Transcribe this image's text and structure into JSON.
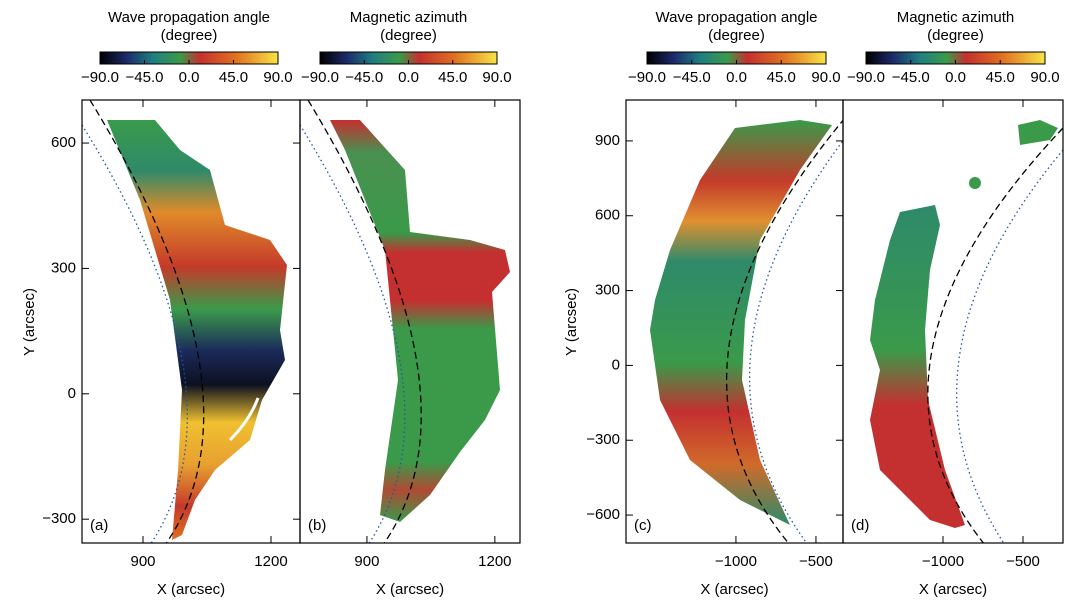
{
  "chart_data": [
    {
      "type": "image",
      "panel_label": "(a)",
      "colorbar": {
        "title": [
          "Wave propagation angle",
          "(degree)"
        ],
        "lim": [
          -90,
          90
        ],
        "ticks": [
          {
            "value": -90,
            "label": "−90.0"
          },
          {
            "value": -45,
            "label": "−45.0"
          },
          {
            "value": 0,
            "label": "0.0"
          },
          {
            "value": 45,
            "label": "45.0"
          },
          {
            "value": 90,
            "label": "90.0"
          }
        ]
      },
      "xlabel": "X (arcsec)",
      "ylabel": "Y (arcsec)",
      "xlim": [
        757,
        1268
      ],
      "ylim": [
        -357,
        703
      ],
      "xticks": [
        900,
        1200
      ],
      "yticks": [
        {
          "value": -300,
          "label": "−300"
        },
        0,
        300,
        600
      ]
    },
    {
      "type": "image",
      "panel_label": "(b)",
      "colorbar": {
        "title": [
          "Magnetic azimuth",
          "(degree)"
        ],
        "lim": [
          -90,
          90
        ],
        "ticks": [
          {
            "value": -90,
            "label": "−90.0"
          },
          {
            "value": -45,
            "label": "−45.0"
          },
          {
            "value": 0,
            "label": "0.0"
          },
          {
            "value": 45,
            "label": "45.0"
          },
          {
            "value": 90,
            "label": "90.0"
          }
        ]
      },
      "xlabel": "X (arcsec)",
      "xlim": [
        743,
        1259
      ],
      "ylim": [
        -357,
        703
      ],
      "xticks": [
        900,
        1200
      ]
    },
    {
      "type": "image",
      "panel_label": "(c)",
      "colorbar": {
        "title": [
          "Wave propagation angle",
          "(degree)"
        ],
        "lim": [
          -90,
          90
        ],
        "ticks": [
          {
            "value": -90,
            "label": "−90.0"
          },
          {
            "value": -45,
            "label": "−45.0"
          },
          {
            "value": 0,
            "label": "0.0"
          },
          {
            "value": 45,
            "label": "45.0"
          },
          {
            "value": 90,
            "label": "90.0"
          }
        ]
      },
      "xlabel": "X (arcsec)",
      "ylabel": "Y (arcsec)",
      "xlim": [
        -1687,
        -331
      ],
      "ylim": [
        -712,
        1064
      ],
      "xticks": [
        {
          "value": -1000,
          "label": "−1000"
        },
        {
          "value": -500,
          "label": "−500"
        }
      ],
      "yticks": [
        {
          "value": -600,
          "label": "−600"
        },
        {
          "value": -300,
          "label": "−300"
        },
        0,
        300,
        600,
        900
      ]
    },
    {
      "type": "image",
      "panel_label": "(d)",
      "colorbar": {
        "title": [
          "Magnetic azimuth",
          "(degree)"
        ],
        "lim": [
          -90,
          90
        ],
        "ticks": [
          {
            "value": -90,
            "label": "−90.0"
          },
          {
            "value": -45,
            "label": "−45.0"
          },
          {
            "value": 0,
            "label": "0.0"
          },
          {
            "value": 45,
            "label": "45.0"
          },
          {
            "value": 90,
            "label": "90.0"
          }
        ]
      },
      "xlabel": "X (arcsec)",
      "xlim": [
        -1625,
        -250
      ],
      "ylim": [
        -712,
        1064
      ],
      "xticks": [
        {
          "value": -1000,
          "label": "−1000"
        },
        {
          "value": -500,
          "label": "−500"
        }
      ]
    }
  ]
}
